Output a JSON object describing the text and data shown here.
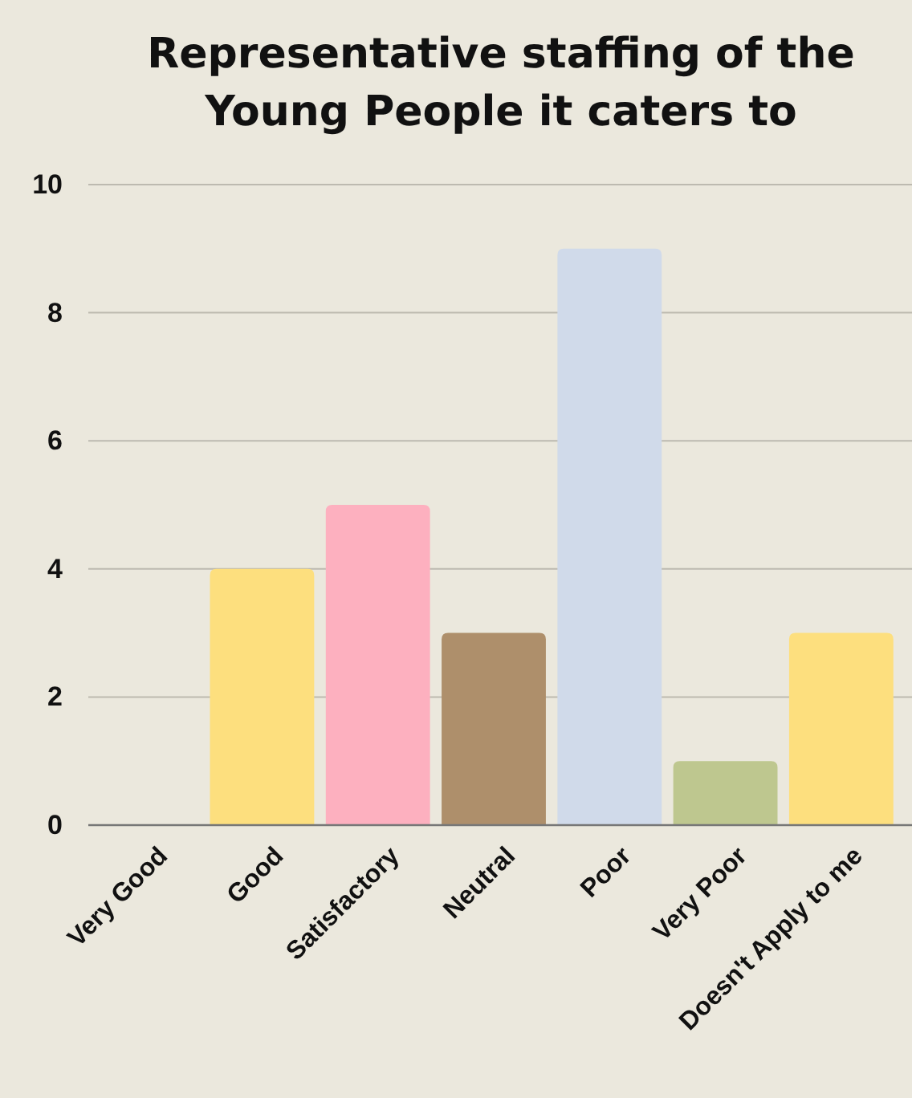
{
  "chart_data": {
    "type": "bar",
    "title": "Representative staffing of the Young People it caters to",
    "categories": [
      "Very Good",
      "Good",
      "Satisfactory",
      "Neutral",
      "Poor",
      "Very Poor",
      "Doesn't Apply to me"
    ],
    "values": [
      0,
      4,
      5,
      3,
      9,
      1,
      3
    ],
    "colors": [
      "#fddf7e",
      "#fddf7e",
      "#fdb0bf",
      "#ae8f6b",
      "#d0daea",
      "#bec78f",
      "#fddf7e"
    ],
    "ylim": [
      0,
      10
    ],
    "yticks": [
      0,
      2,
      4,
      6,
      8,
      10
    ],
    "grid": "y"
  }
}
